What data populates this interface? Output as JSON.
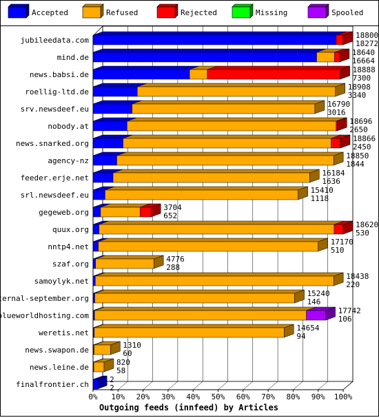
{
  "chart_data": {
    "type": "bar",
    "orientation": "horizontal",
    "stacked": true,
    "style": "3d",
    "grid": true,
    "legend_position": "top",
    "xlabel": "Outgoing feeds (innfeed) by Articles",
    "xlim": [
      0,
      100
    ],
    "x_ticks": [
      "0%",
      "10%",
      "20%",
      "30%",
      "40%",
      "50%",
      "60%",
      "70%",
      "80%",
      "90%",
      "100%"
    ],
    "legend": [
      {
        "name": "Accepted",
        "color": "#0000ff"
      },
      {
        "name": "Refused",
        "color": "#ffaa00"
      },
      {
        "name": "Rejected",
        "color": "#ff0000"
      },
      {
        "name": "Missing",
        "color": "#00ff00"
      },
      {
        "name": "Spooled",
        "color": "#aa00ff"
      }
    ],
    "categories": [
      "jubileedata.com",
      "mind.de",
      "news.babsi.de",
      "roellig-ltd.de",
      "srv.newsdeef.eu",
      "nobody.at",
      "news.snarked.org",
      "agency-nz",
      "feeder.erje.net",
      "srl.newsdeef.eu",
      "gegeweb.org",
      "quux.org",
      "nntp4.net",
      "szaf.org",
      "samoylyk.net",
      "eternal-september.org",
      "blueworldhosting.com",
      "weretis.net",
      "news.swapon.de",
      "news.leine.de",
      "finalfrontier.ch"
    ],
    "offered": [
      18800,
      18640,
      18888,
      18908,
      16790,
      18696,
      18866,
      18850,
      16184,
      15410,
      3704,
      18620,
      17170,
      4776,
      18438,
      15240,
      17742,
      14654,
      1310,
      820,
      2
    ],
    "accepted": [
      18272,
      16664,
      7300,
      3340,
      3016,
      2650,
      2450,
      1844,
      1636,
      1118,
      652,
      530,
      510,
      288,
      220,
      146,
      106,
      94,
      60,
      58,
      2
    ],
    "series": [
      {
        "name": "Accepted",
        "values": [
          97.2,
          89.4,
          38.6,
          17.7,
          15.6,
          13.6,
          12.0,
          9.5,
          8.0,
          4.8,
          3.0,
          2.4,
          2.1,
          1.0,
          0.9,
          0.7,
          0.6,
          0.5,
          0.4,
          0.3,
          1.7
        ]
      },
      {
        "name": "Refused",
        "values": [
          0.0,
          7.1,
          7.1,
          79.2,
          73.1,
          83.6,
          83.2,
          86.7,
          78.6,
          77.2,
          15.8,
          94.0,
          87.9,
          23.3,
          95.3,
          79.9,
          84.7,
          75.9,
          6.6,
          4.1,
          0.0
        ]
      },
      {
        "name": "Rejected",
        "values": [
          2.8,
          2.1,
          53.1,
          0.0,
          0.0,
          0.4,
          3.7,
          0.0,
          0.0,
          0.0,
          4.4,
          3.6,
          0.0,
          0.0,
          0.0,
          0.0,
          0.0,
          0.0,
          0.0,
          0.0,
          0.0
        ]
      },
      {
        "name": "Missing",
        "values": [
          0.0,
          0.0,
          0.0,
          0.0,
          0.0,
          0.0,
          0.0,
          0.0,
          0.0,
          0.0,
          0.0,
          0.0,
          0.0,
          0.0,
          0.0,
          0.0,
          0.0,
          0.0,
          0.0,
          0.0,
          0.0
        ]
      },
      {
        "name": "Spooled",
        "values": [
          0.0,
          0.0,
          0.0,
          0.0,
          0.0,
          0.0,
          0.0,
          0.0,
          0.0,
          0.0,
          0.0,
          0.0,
          0.0,
          0.0,
          0.0,
          0.0,
          7.7,
          0.0,
          0.0,
          0.0,
          0.0
        ]
      }
    ]
  }
}
